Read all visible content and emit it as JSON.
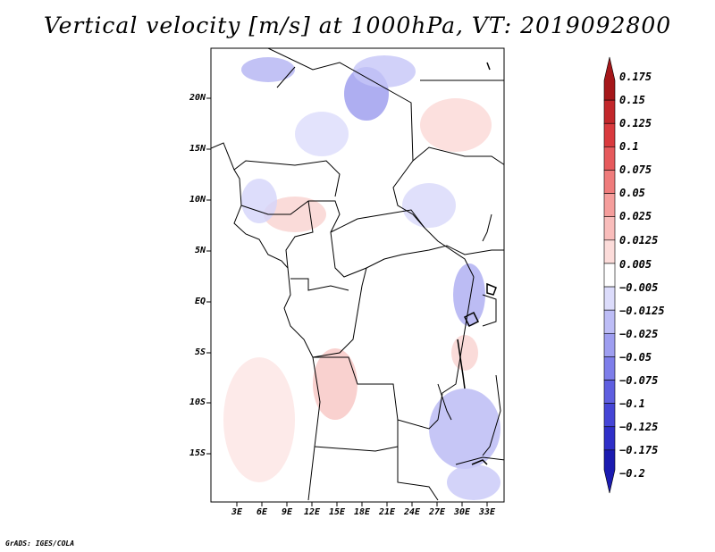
{
  "title": "Vertical velocity [m/s] at 1000hPa, VT: 2019092800",
  "footer": "GrADS: IGES/COLA",
  "lat_labels": [
    "20N",
    "15N",
    "10N",
    "5N",
    "EQ",
    "5S",
    "10S",
    "15S"
  ],
  "lon_labels": [
    "3E",
    "6E",
    "9E",
    "12E",
    "15E",
    "18E",
    "21E",
    "24E",
    "27E",
    "30E",
    "33E"
  ],
  "colorbar": {
    "labels": [
      "0.175",
      "0.15",
      "0.125",
      "0.1",
      "0.075",
      "0.05",
      "0.025",
      "0.0125",
      "0.005",
      "−0.005",
      "−0.0125",
      "−0.025",
      "−0.05",
      "−0.075",
      "−0.1",
      "−0.125",
      "−0.175",
      "−0.2"
    ],
    "colors": [
      "#a5171a",
      "#c2272b",
      "#d93a3e",
      "#e65a5c",
      "#ef7c7c",
      "#f59e9c",
      "#f9bdbb",
      "#fcdcda",
      "#ffffff",
      "#dcdcfb",
      "#bdbdf6",
      "#9e9ef0",
      "#7e7eea",
      "#5f5fe0",
      "#4545d6",
      "#2f2fc8",
      "#1b1bb0"
    ]
  }
}
